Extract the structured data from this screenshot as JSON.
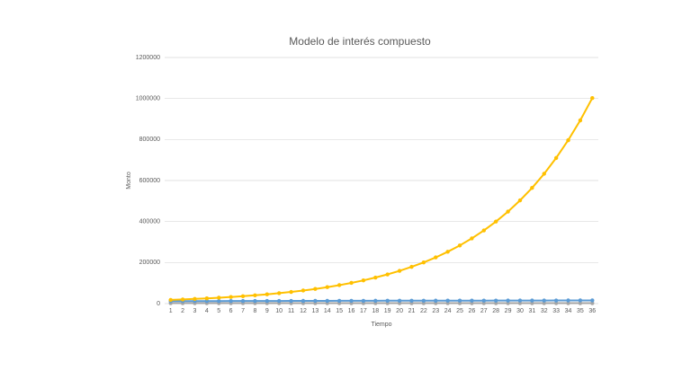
{
  "chart_data": {
    "type": "line",
    "title": "Modelo de interés compuesto",
    "x_label": "Tiempo",
    "y_label": "Monto",
    "categories": [
      1,
      2,
      3,
      4,
      5,
      6,
      7,
      8,
      9,
      10,
      11,
      12,
      13,
      14,
      15,
      16,
      17,
      18,
      19,
      20,
      21,
      22,
      23,
      24,
      25,
      26,
      27,
      28,
      29,
      30,
      31,
      32,
      33,
      34,
      35,
      36
    ],
    "series": [
      {
        "color": "#a5a5a5",
        "values": [
          2000,
          2000,
          2000,
          2000,
          2000,
          2000,
          2000,
          2000,
          2000,
          2000,
          2000,
          2000,
          2000,
          2000,
          2000,
          2000,
          2000,
          2000,
          2000,
          2000,
          2000,
          2000,
          2000,
          2000,
          2000,
          2000,
          2000,
          2000,
          2000,
          2000,
          2000,
          2000,
          2000,
          2000,
          2000,
          2000
        ]
      },
      {
        "color": "#5b9bd5",
        "values": [
          12000,
          12100,
          12200,
          12300,
          12400,
          12500,
          12600,
          12700,
          12800,
          12900,
          13000,
          13100,
          13200,
          13300,
          13400,
          13500,
          13600,
          13700,
          13800,
          13900,
          14000,
          14100,
          14200,
          14300,
          14400,
          14500,
          14600,
          14700,
          14800,
          14900,
          15000,
          15100,
          15200,
          15300,
          15400,
          15500
        ]
      },
      {
        "color": "#ffc000",
        "values": [
          18000,
          20200,
          22600,
          25400,
          28500,
          32000,
          35900,
          40200,
          45100,
          50600,
          56800,
          63700,
          71400,
          80100,
          89900,
          100800,
          113100,
          126800,
          142200,
          159600,
          179000,
          200800,
          225200,
          252600,
          283300,
          317800,
          356500,
          399900,
          448500,
          503100,
          564300,
          633000,
          710000,
          796500,
          893400,
          1002100
        ]
      }
    ],
    "ylim": [
      0,
      1200000
    ],
    "yticks": [
      0,
      200000,
      400000,
      600000,
      800000,
      1000000,
      1200000
    ],
    "grid": true
  }
}
